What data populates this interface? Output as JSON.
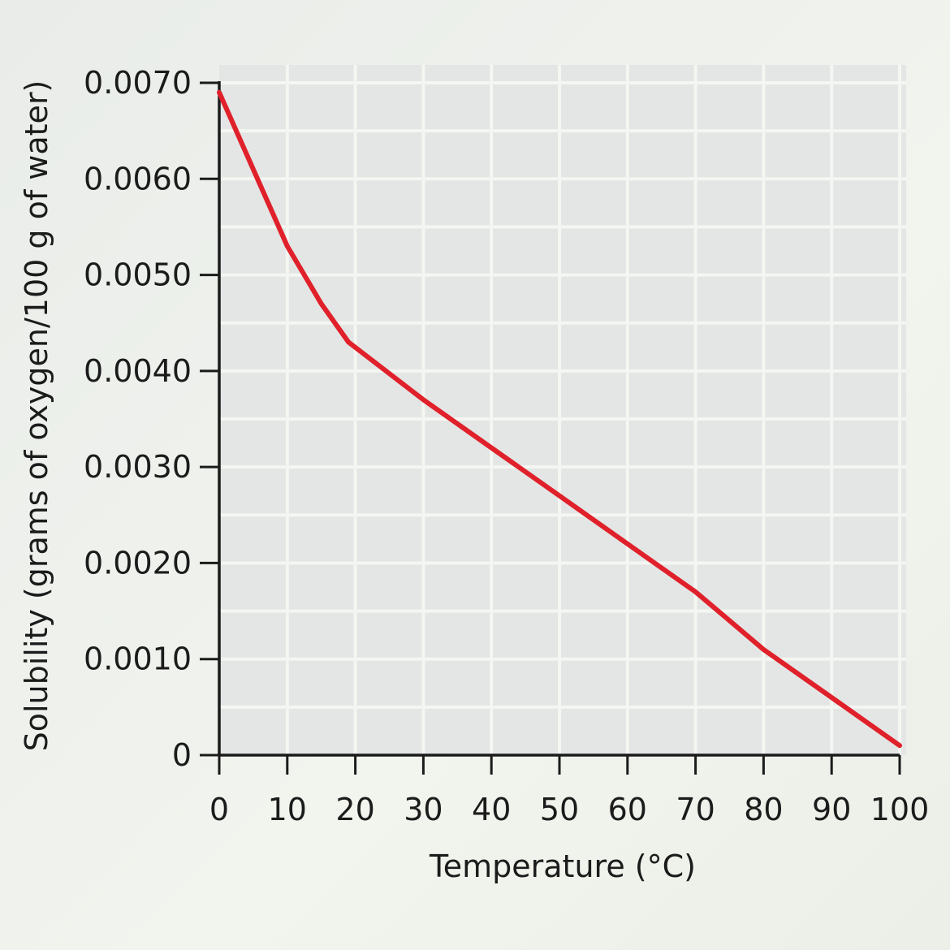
{
  "chart_data": {
    "type": "line",
    "title": "",
    "xlabel": "Temperature (°C)",
    "ylabel": "Solubility (grams of oxygen/100 g of water)",
    "xlim": [
      0,
      100
    ],
    "ylim": [
      0,
      0.007
    ],
    "x_ticks": [
      0,
      10,
      20,
      30,
      40,
      50,
      60,
      70,
      80,
      90,
      100
    ],
    "x_tick_labels": [
      "0",
      "10",
      "20",
      "30",
      "40",
      "50",
      "60",
      "70",
      "80",
      "90",
      "100"
    ],
    "y_ticks": [
      0,
      0.001,
      0.002,
      0.003,
      0.004,
      0.005,
      0.006,
      0.007
    ],
    "y_tick_labels": [
      "0",
      "0.0010",
      "0.0020",
      "0.0030",
      "0.0040",
      "0.0050",
      "0.0060",
      "0.0070"
    ],
    "grid": true,
    "series": [
      {
        "color": "#e0202a",
        "x": [
          0,
          5,
          10,
          15,
          19,
          30,
          40,
          50,
          60,
          70,
          80,
          90,
          100
        ],
        "y": [
          0.0069,
          0.0061,
          0.0053,
          0.0047,
          0.0043,
          0.0037,
          0.0032,
          0.0027,
          0.0022,
          0.0017,
          0.0011,
          0.0006,
          0.0001
        ]
      }
    ],
    "colors": {
      "plot_background": "#e3e6e4",
      "grid": "#f4f6f2",
      "axis": "#1b1b1b"
    }
  }
}
